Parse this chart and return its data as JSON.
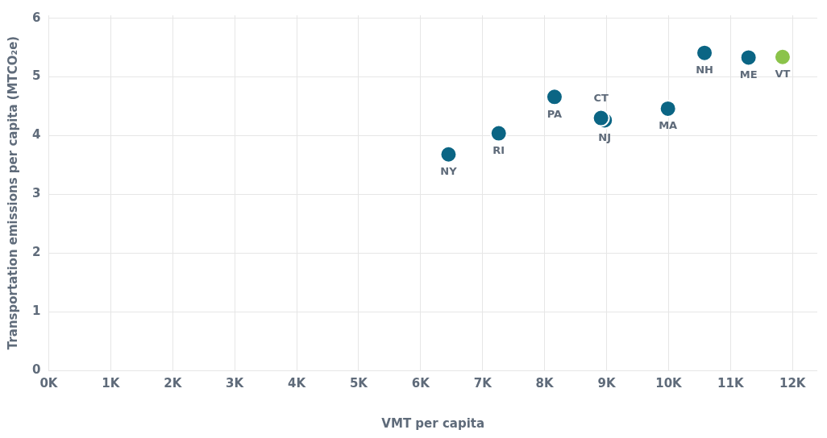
{
  "chart_data": {
    "type": "scatter",
    "xlabel": "VMT per capita",
    "ylabel": "Transportation emissions per capita (MTCO₂e)",
    "x": [
      6450,
      7260,
      8160,
      8910,
      8970,
      9990,
      10580,
      11290,
      11840
    ],
    "values": [
      3.68,
      4.04,
      4.66,
      4.3,
      4.26,
      4.46,
      5.41,
      5.33,
      5.34
    ],
    "colors": [
      "#0b6584",
      "#0b6584",
      "#0b6584",
      "#0b6584",
      "#0b6584",
      "#0b6584",
      "#0b6584",
      "#0b6584",
      "#8bc34a"
    ],
    "marker": "circle",
    "grid": true,
    "xlim": [
      0,
      12400
    ],
    "xticks": [
      {
        "value": 0,
        "label": "0K"
      },
      {
        "value": 1000,
        "label": "1K"
      },
      {
        "value": 2000,
        "label": "2K"
      },
      {
        "value": 3000,
        "label": "3K"
      },
      {
        "value": 4000,
        "label": "4K"
      },
      {
        "value": 5000,
        "label": "5K"
      },
      {
        "value": 6000,
        "label": "6K"
      },
      {
        "value": 7000,
        "label": "7K"
      },
      {
        "value": 8000,
        "label": "8K"
      },
      {
        "value": 9000,
        "label": "9K"
      },
      {
        "value": 10000,
        "label": "10K"
      },
      {
        "value": 11000,
        "label": "11K"
      },
      {
        "value": 12000,
        "label": "12K"
      }
    ],
    "ylim": [
      0,
      6.05
    ],
    "yticks": [
      0,
      1,
      2,
      3,
      4,
      5,
      6
    ],
    "annotations": [
      {
        "text": "NY",
        "x": 6450,
        "y": 3.68
      },
      {
        "text": "RI",
        "x": 7260,
        "y": 4.04
      },
      {
        "text": "PA",
        "x": 8160,
        "y": 4.66
      },
      {
        "text": "CT",
        "x": 8910,
        "y": 4.3
      },
      {
        "text": "NJ",
        "x": 8970,
        "y": 4.26
      },
      {
        "text": "MA",
        "x": 9990,
        "y": 4.46
      },
      {
        "text": "NH",
        "x": 10580,
        "y": 5.41
      },
      {
        "text": "ME",
        "x": 11290,
        "y": 5.33
      },
      {
        "text": "VT",
        "x": 11840,
        "y": 5.34
      }
    ]
  }
}
